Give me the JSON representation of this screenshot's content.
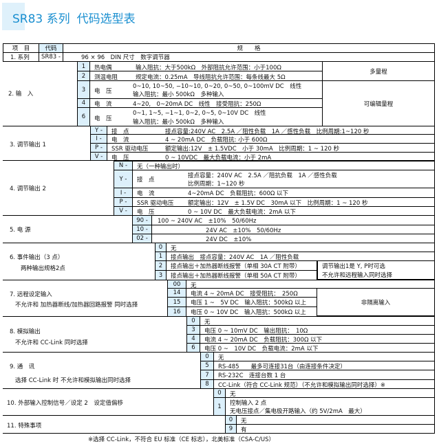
{
  "title": {
    "series": "SR83 系列",
    "name": "代码选型表",
    "accent": "#1a8fd0"
  },
  "header": {
    "item": "项　目",
    "code": "代码",
    "spec": "规　　格"
  },
  "s1": {
    "label": "1. 系列",
    "code": "SR83 -",
    "spec": "96 × 96　DIN 尺寸　数字调节器"
  },
  "s2": {
    "label": "2. 输　入",
    "rows": [
      {
        "code": "1",
        "name": "热电偶",
        "spec": "输入阻抗：大于500kΩ　外部阻抗允许范围：小于100Ω"
      },
      {
        "code": "2",
        "name": "测温电阻",
        "spec": "规定电流：0.25mA　导线阻抗允许范围：每条线最大 5Ω"
      },
      {
        "code": "3",
        "name": "电　压",
        "spec": "0~10, 10~50, −10~10, 0~20, 0~50, 0~100mV DC　线性",
        "spec2": "输入阻抗：最小 500kΩ　多种输入"
      },
      {
        "code": "4",
        "name": "电　流",
        "spec": "4~20,　0~20mA DC　线性　接受阻抗：250Ω"
      },
      {
        "code": "6",
        "name": "电　压",
        "spec": "0~1, 1~5, −1~1, 0~2, 0~5, 0~10V DC　线性",
        "spec2": "输入阻抗：最小 500kΩ　多种输入"
      }
    ],
    "note1": "多量程",
    "note2": "可编辑量程"
  },
  "s3": {
    "label": "3. 调节输出 1",
    "rows": [
      {
        "code": "Y -",
        "name": "接　点",
        "spec": "接点容量:240V AC　2.5A ／阻性负载　1A ／感性负载　比例周期:1~120 秒"
      },
      {
        "code": "I -",
        "name": "电　流",
        "spec": "4 ~ 20mA DC　负载阻抗: 小于 600Ω"
      },
      {
        "code": "P -",
        "name": "SSR 驱动电压",
        "spec": "额定输出:12V　± 1.5VDC　小于 30mA　比例周期：1 ~ 120 秒"
      },
      {
        "code": "V -",
        "name": "电　压",
        "spec": "0 ~ 10VDC　最大负载电流：小于 2mA"
      }
    ]
  },
  "s4": {
    "label": "4. 调节输出 2",
    "rows": [
      {
        "code": "N -",
        "name": "无（一种输出时）",
        "spec": ""
      },
      {
        "code": "Y -",
        "name": "接　点",
        "spec": "接点容量：240V AC　2.5A ／阻抗负载　1A ／感性负载",
        "spec2": "比例周期：1~120 秒"
      },
      {
        "code": "I -",
        "name": "电　流",
        "spec": "4~20mA DC　负载阻抗：600Ω 以下"
      },
      {
        "code": "P -",
        "name": "SSR 驱动电压",
        "spec": "额定输出：12V　± 1.5V DC　30mA 以下　比例周期：1 ~ 120 秒"
      },
      {
        "code": "V -",
        "name": "电　压",
        "spec": "0 ~ 10V DC　最大负载电流：2mA 以下"
      }
    ]
  },
  "s5": {
    "label": "5. 电 源",
    "rows": [
      {
        "code": "90 -",
        "spec": "100 ~ 240V AC　±10%　50/60Hz"
      },
      {
        "code": "10 -",
        "spec": "24V AC　±10%　50/60Hz"
      },
      {
        "code": "02 -",
        "spec": "24V DC　±10%"
      }
    ]
  },
  "s6": {
    "label": "6. 事件输出（3 点）",
    "label2": "两种输出规格2点",
    "rows": [
      {
        "code": "0",
        "spec": "无"
      },
      {
        "code": "1",
        "spec": "接点输出　接点容量：240V AC　1A ／阻性负载"
      },
      {
        "code": "2",
        "spec": "接点输出＋加热器断线报警（单相 30A CT 附带）"
      },
      {
        "code": "3",
        "spec": "接点输出＋加热器断线报警（单相 50A CT 附带）"
      }
    ],
    "note": "调节输出1是 Y, P时可选",
    "note2": "不允许和远程输入同时选择"
  },
  "s7": {
    "label": "7. 远程设定输入",
    "label2": "不允许和 加热器断线/加热器回路报警 同时选择",
    "rows": [
      {
        "code": "00",
        "spec": "无"
      },
      {
        "code": "14",
        "spec": "电流 4 ~ 20mA DC　接受阻抗：　250Ω"
      },
      {
        "code": "15",
        "spec": "电压 1 ~　5V DC　输入阻抗：500kΩ 以上"
      },
      {
        "code": "16",
        "spec": "电压 0 ~ 10V DC　输入阻抗：500kΩ 以上"
      }
    ],
    "note": "非隔离输入"
  },
  "s8": {
    "label": "8. 模拟输出",
    "label2": "不允许和 CC-Link 同时选择",
    "rows": [
      {
        "code": "0",
        "spec": "无"
      },
      {
        "code": "3",
        "spec": "电压 0 ~ 10mV DC　输出阻抗：　10Ω"
      },
      {
        "code": "4",
        "spec": "电流 4 ~ 20mA DC　负载阻抗：300Ω 以下"
      },
      {
        "code": "6",
        "spec": "电压 0 ~　10V DC　负载电流：2mA 以下"
      }
    ]
  },
  "s9": {
    "label": "9. 通　讯",
    "label2": "选择 CC-Link 时 不允许和模拟输出同时选择",
    "rows": [
      {
        "code": "0",
        "spec": "无"
      },
      {
        "code": "5",
        "spec": "RS-485　　最多可连接31台（由连接条件决定）"
      },
      {
        "code": "7",
        "spec": "RS-232C　连接台数 1 台"
      },
      {
        "code": "8",
        "spec": "CC-Link（符合 CC-Link 规范）（不允许和模拟输出同时选择）※"
      }
    ]
  },
  "s10": {
    "label": "10. 外部输入控制信号／设定 2　设定值偏移",
    "rows": [
      {
        "code": "0",
        "spec": "无"
      },
      {
        "code": "1",
        "spec": "控制输入 2 点",
        "spec2": "无电压接点／集电极开路输入（约 5V/2mA　最大）"
      }
    ]
  },
  "s11": {
    "label": "11. 特殊事项",
    "rows": [
      {
        "code": "0",
        "spec": "无"
      },
      {
        "code": "9",
        "spec": "有"
      }
    ]
  },
  "footnote": "※选择 CC-Link，不符合 EU 标准（CE 标志），北美标准（CSA-C/US）"
}
